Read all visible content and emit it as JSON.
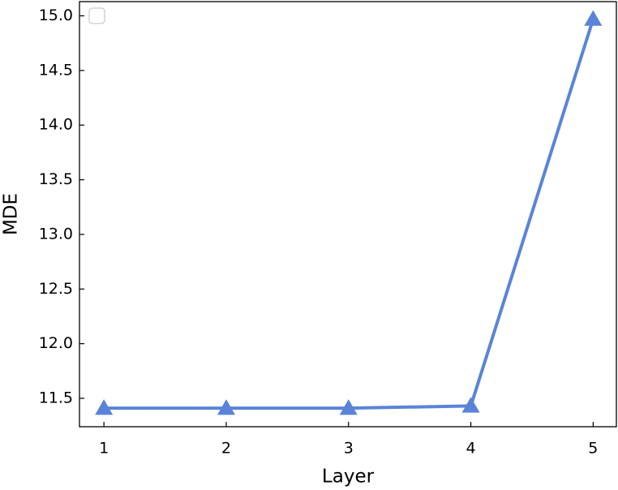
{
  "chart_data": {
    "type": "line",
    "xlabel": "Layer",
    "ylabel": "MDE",
    "x": [
      1,
      2,
      3,
      4,
      5
    ],
    "series": [
      {
        "color": "#5b84d8",
        "marker": "triangle",
        "values": [
          11.41,
          11.41,
          11.41,
          11.43,
          14.97
        ]
      }
    ],
    "xlim": [
      0.8,
      5.19
    ],
    "xticks": [
      1,
      2,
      3,
      4,
      5
    ],
    "ylim": [
      11.24,
      15.13
    ],
    "yticks": [
      11.5,
      {
        "value": 12,
        "label": "12.0"
      },
      12.5,
      {
        "value": 13,
        "label": "13.0"
      },
      13.5,
      {
        "value": 14,
        "label": "14.0"
      },
      14.5,
      {
        "value": 15,
        "label": "15.0"
      }
    ],
    "grid": false,
    "legend": "upper left"
  }
}
